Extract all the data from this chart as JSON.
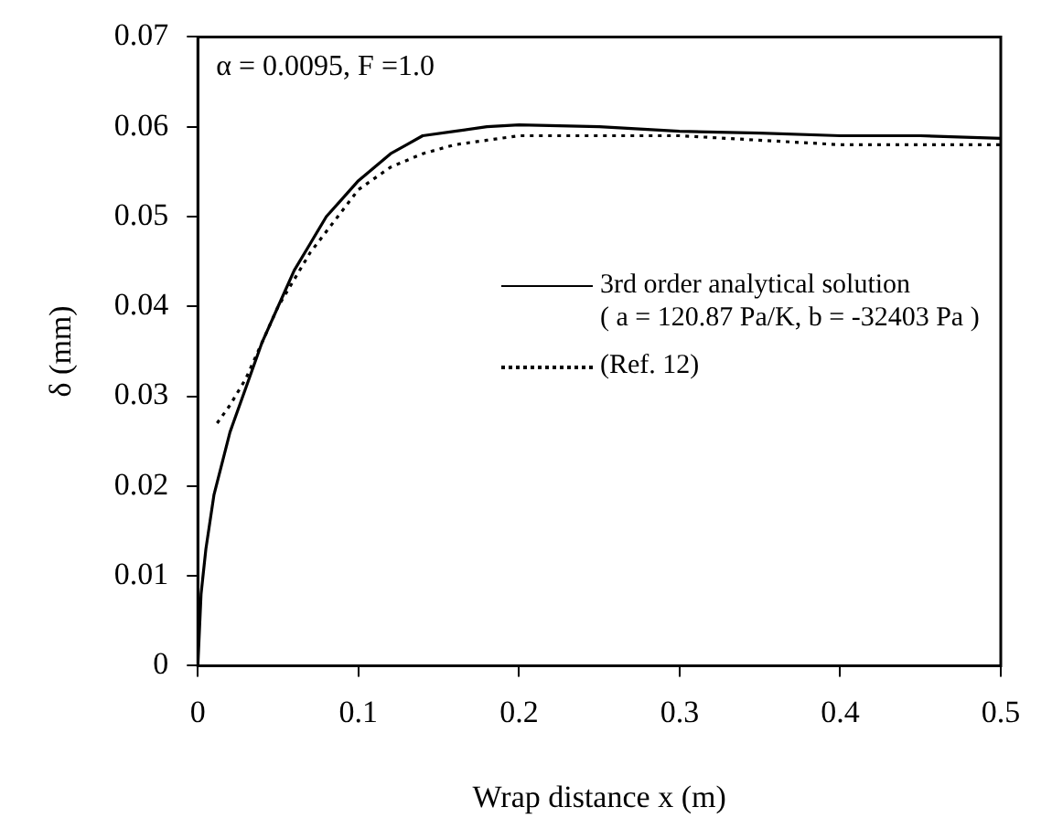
{
  "chart_data": {
    "type": "line",
    "xlabel": "Wrap distance x (m)",
    "ylabel": "δ (mm)",
    "annotations": [
      "α = 0.0095, F =1.0"
    ],
    "xlim": [
      0,
      0.5
    ],
    "xticks": [
      0,
      0.1,
      0.2,
      0.3,
      0.4,
      0.5
    ],
    "ylim": [
      0,
      0.07
    ],
    "yticks": [
      0,
      0.01,
      0.02,
      0.03,
      0.04,
      0.05,
      0.06,
      0.07
    ],
    "grid": false,
    "legend": "right",
    "marker": "none",
    "series": [
      {
        "name": "3rd order analytical solution\n( a = 120.87 Pa/K, b = -32403 Pa )",
        "color": "#000000",
        "line_style": "solid",
        "x": [
          0,
          0.002,
          0.005,
          0.01,
          0.02,
          0.03,
          0.04,
          0.05,
          0.06,
          0.07,
          0.08,
          0.09,
          0.1,
          0.11,
          0.12,
          0.13,
          0.14,
          0.16,
          0.18,
          0.2,
          0.25,
          0.3,
          0.35,
          0.4,
          0.45,
          0.5
        ],
        "values": [
          0,
          0.008,
          0.013,
          0.019,
          0.026,
          0.031,
          0.036,
          0.04,
          0.044,
          0.047,
          0.05,
          0.052,
          0.054,
          0.0555,
          0.057,
          0.058,
          0.059,
          0.0595,
          0.06,
          0.0602,
          0.06,
          0.0595,
          0.0593,
          0.059,
          0.059,
          0.0587
        ]
      },
      {
        "name": "(Ref. 12)",
        "color": "#000000",
        "line_style": "dotted",
        "x": [
          0.012,
          0.02,
          0.03,
          0.04,
          0.05,
          0.07,
          0.1,
          0.12,
          0.14,
          0.16,
          0.18,
          0.2,
          0.3,
          0.4,
          0.5
        ],
        "values": [
          0.027,
          0.029,
          0.032,
          0.036,
          0.04,
          0.046,
          0.053,
          0.0555,
          0.057,
          0.058,
          0.0585,
          0.059,
          0.059,
          0.058,
          0.058
        ]
      }
    ]
  }
}
